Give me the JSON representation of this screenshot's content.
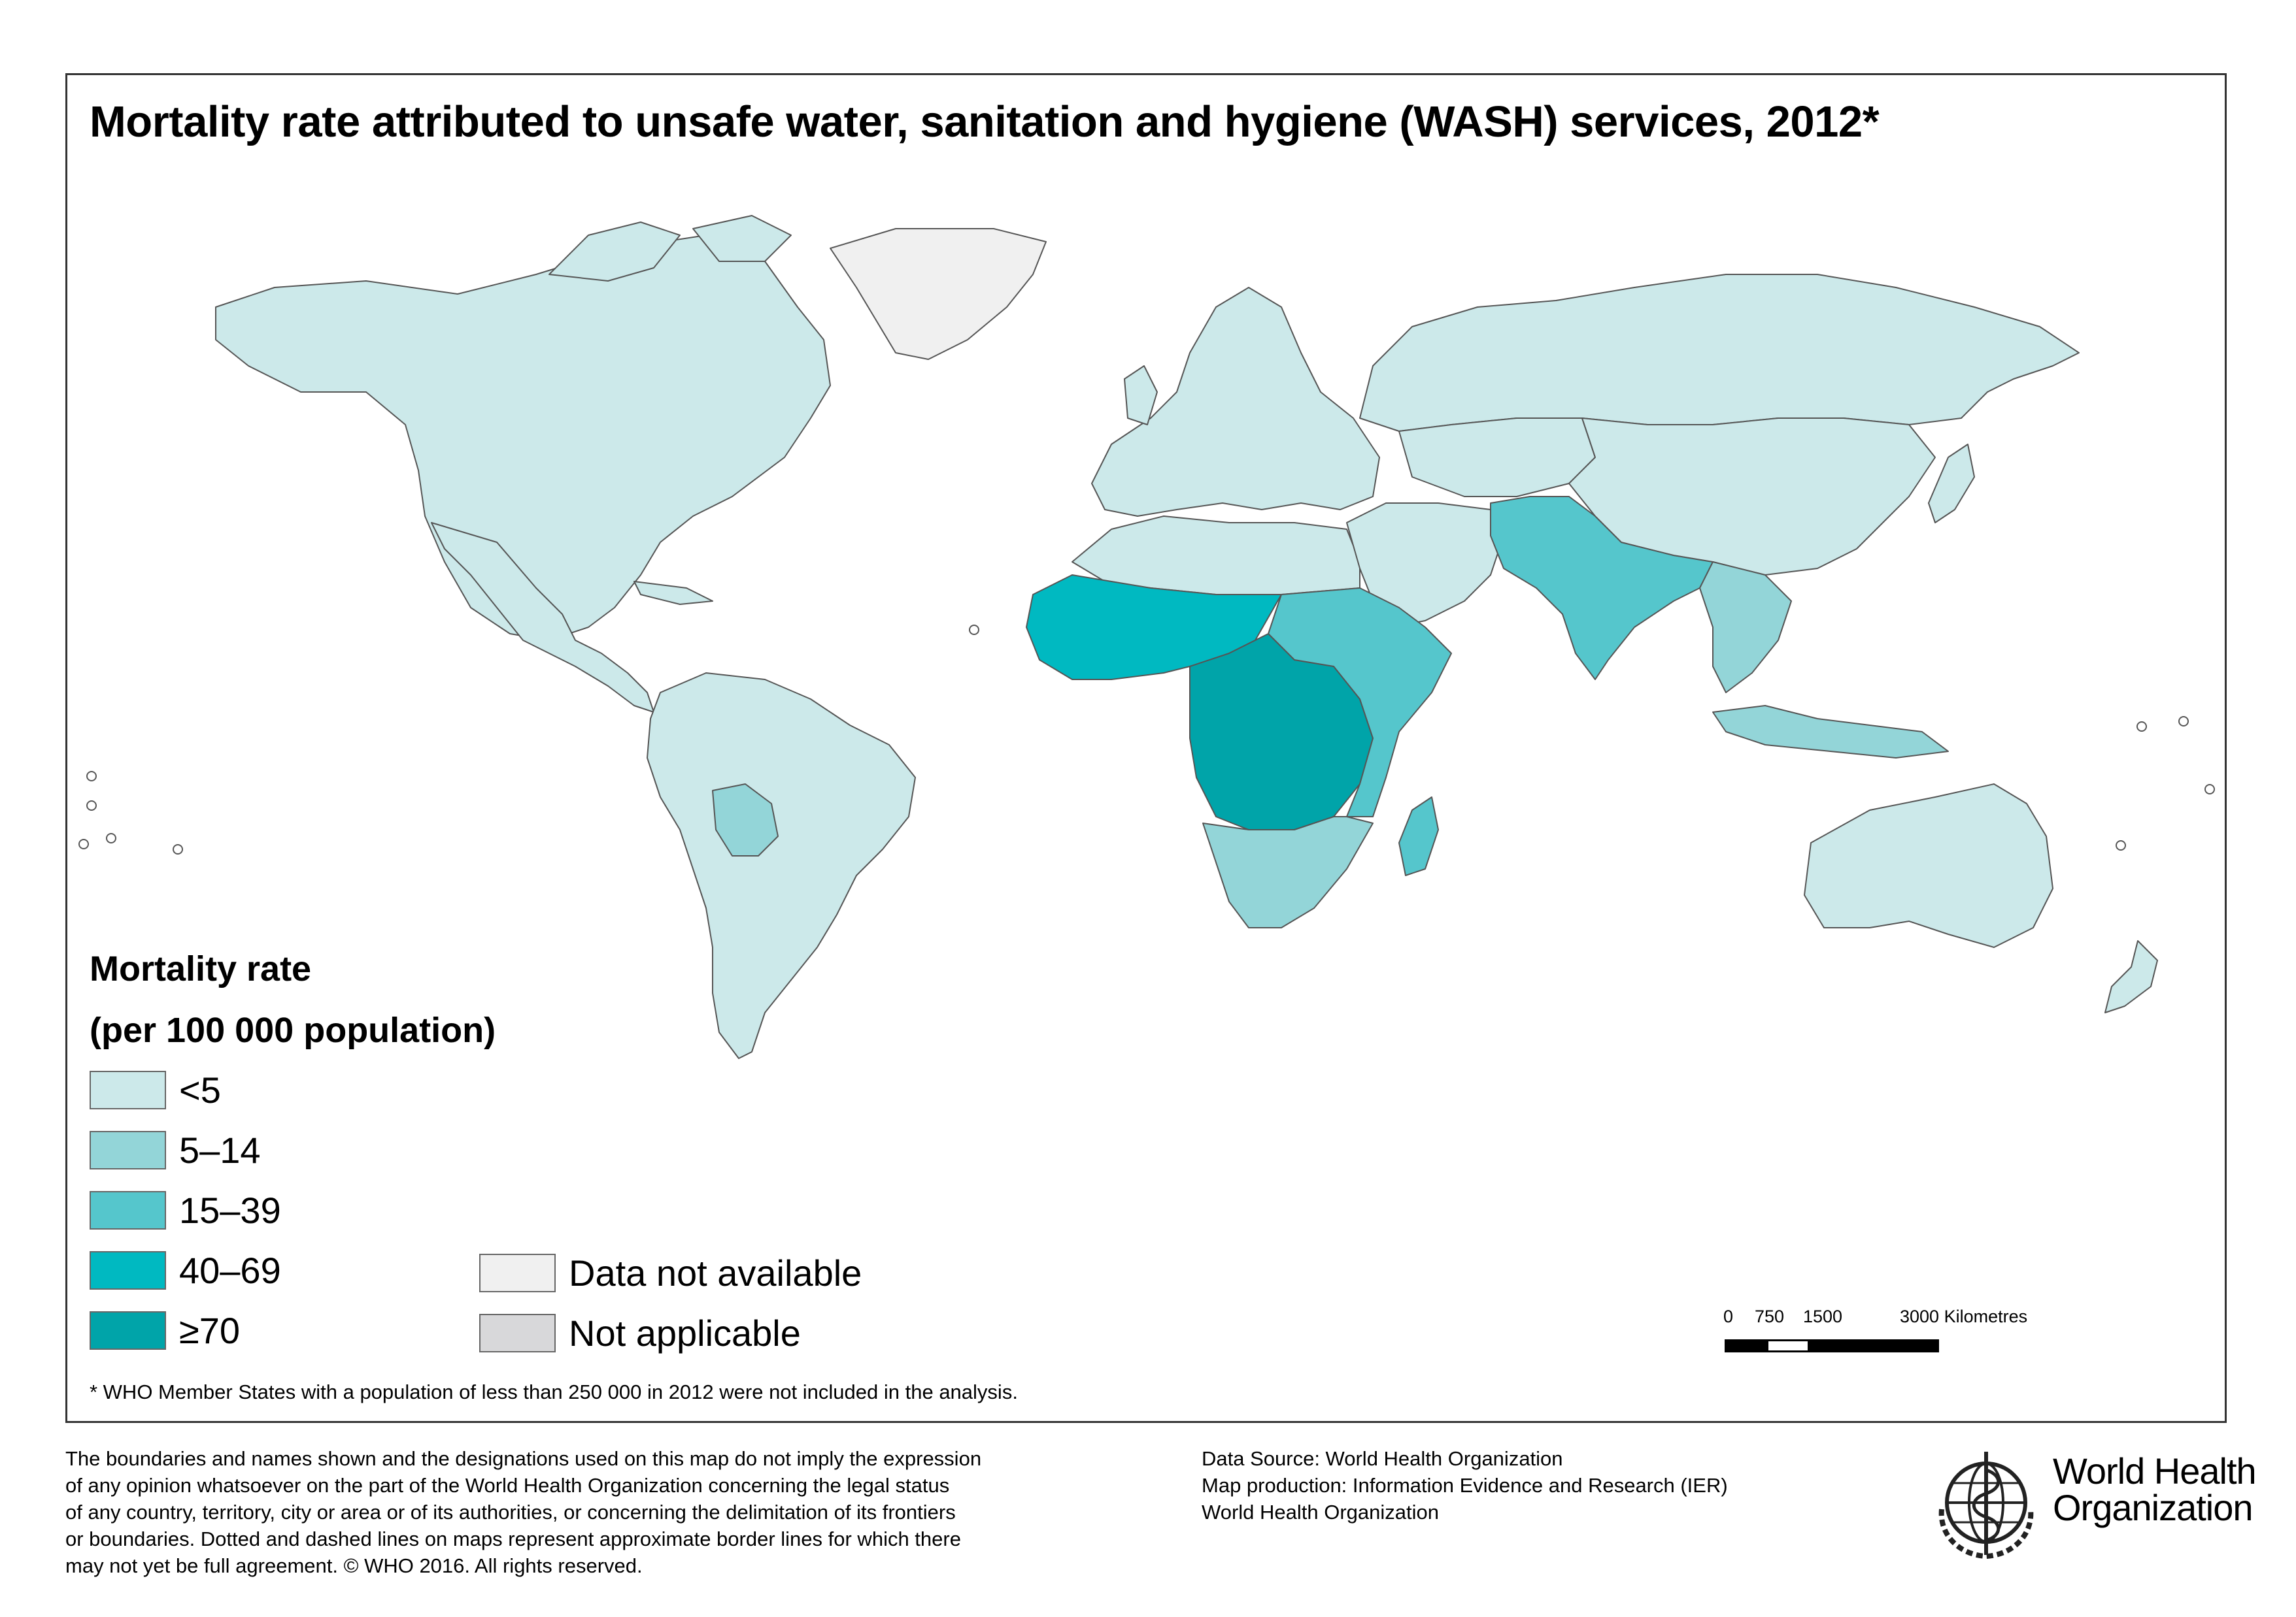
{
  "title": "Mortality rate attributed to unsafe water, sanitation and hygiene (WASH) services, 2012*",
  "legend": {
    "title_line1": "Mortality rate",
    "title_line2": "(per 100 000 population)",
    "classes": [
      {
        "label": "<5",
        "color": "#cce9ea"
      },
      {
        "label": "5–14",
        "color": "#93d5d8"
      },
      {
        "label": "15–39",
        "color": "#55c6cc"
      },
      {
        "label": "40–69",
        "color": "#00b9c1"
      },
      {
        "label": "≥70",
        "color": "#00a4a9"
      }
    ],
    "other": [
      {
        "label": "Data not available",
        "color": "#f0f0f0"
      },
      {
        "label": "Not applicable",
        "color": "#d8d8da"
      }
    ]
  },
  "footnote": "* WHO Member States with a population of less than 250 000 in 2012 were not included in the analysis.",
  "scale": {
    "labels": [
      "0",
      "750",
      "1500",
      "3000 Kilometres"
    ]
  },
  "disclaimer": [
    "The boundaries and names shown and the designations used on this map do not imply the expression",
    "of any opinion whatsoever on the part of the World Health Organization concerning the legal status",
    "of any country, territory, city or area or of its authorities, or concerning the delimitation of its frontiers",
    "or boundaries. Dotted and dashed lines on maps represent approximate border lines for which there",
    "may not yet be full agreement. © WHO 2016. All rights reserved."
  ],
  "source": [
    "Data Source: World Health Organization",
    "Map production: Information Evidence and Research (IER)",
    "World Health Organization"
  ],
  "logo": {
    "line1": "World Health",
    "line2": "Organization"
  },
  "regions": [
    {
      "name": "north-america",
      "class": 0
    },
    {
      "name": "greenland",
      "class": 5
    },
    {
      "name": "central-america",
      "class": 0
    },
    {
      "name": "south-america",
      "class": 0
    },
    {
      "name": "bolivia",
      "class": 1
    },
    {
      "name": "europe",
      "class": 0
    },
    {
      "name": "russia",
      "class": 0
    },
    {
      "name": "north-africa",
      "class": 0
    },
    {
      "name": "middle-east",
      "class": 0
    },
    {
      "name": "sahel-west-africa",
      "class": 3
    },
    {
      "name": "central-africa",
      "class": 4
    },
    {
      "name": "east-africa",
      "class": 2
    },
    {
      "name": "southern-africa",
      "class": 1
    },
    {
      "name": "madagascar",
      "class": 2
    },
    {
      "name": "south-asia",
      "class": 2
    },
    {
      "name": "china",
      "class": 0
    },
    {
      "name": "southeast-asia",
      "class": 1
    },
    {
      "name": "australia",
      "class": 0
    },
    {
      "name": "new-zealand",
      "class": 0
    }
  ]
}
